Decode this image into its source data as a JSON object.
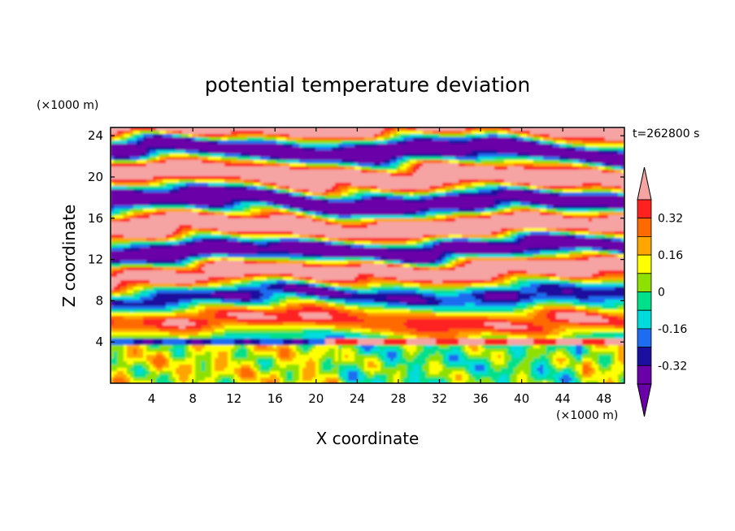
{
  "chart_data": {
    "type": "heatmap",
    "title": "potential temperature deviation",
    "xlabel": "X coordinate",
    "ylabel": "Z coordinate",
    "x_unit": "(×1000 m)",
    "y_unit": "(×1000 m)",
    "time_label": "t=262800 s",
    "xlim": [
      0,
      50
    ],
    "ylim": [
      0,
      24.8
    ],
    "x_ticks": [
      4,
      8,
      12,
      16,
      20,
      24,
      28,
      32,
      36,
      40,
      44,
      48
    ],
    "y_ticks": [
      4,
      8,
      12,
      16,
      20,
      24
    ],
    "colorbar": {
      "levels": [
        -0.4,
        -0.32,
        -0.24,
        -0.16,
        -0.08,
        0,
        0.08,
        0.16,
        0.24,
        0.32,
        0.4
      ],
      "labels": [
        "0.32",
        "0.16",
        "0",
        "-0.16",
        "-0.32"
      ],
      "label_values": [
        0.32,
        0.16,
        0,
        -0.16,
        -0.32
      ],
      "colors": [
        "#6a00a8",
        "#1a0f9e",
        "#1e6cf0",
        "#00dcdc",
        "#00e08a",
        "#8ee000",
        "#ffff00",
        "#ffa500",
        "#ff6a00",
        "#ff2020",
        "#f5a3a3"
      ]
    }
  }
}
